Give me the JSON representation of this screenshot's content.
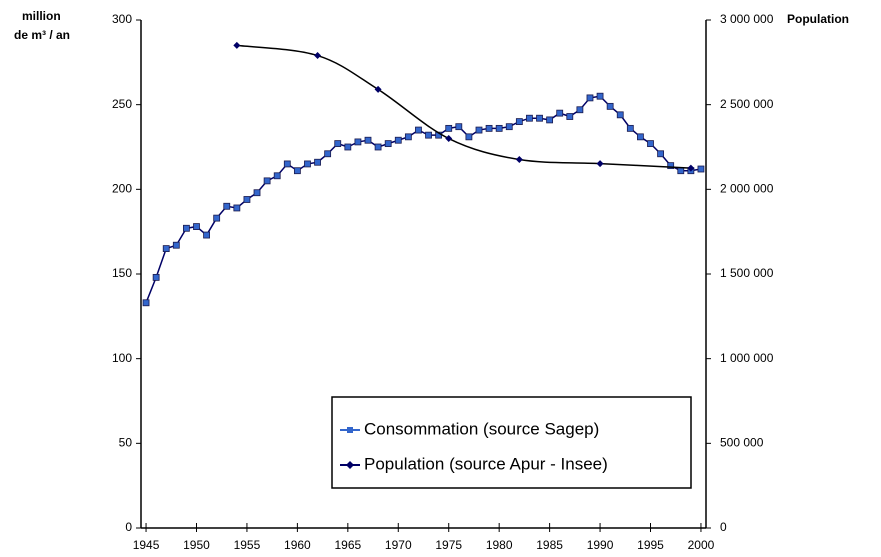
{
  "chart_data": {
    "type": "line",
    "y_label_lines": [
      "million",
      "de m³ / an"
    ],
    "y2_label": "Population",
    "x": [
      1945,
      1946,
      1947,
      1948,
      1949,
      1950,
      1951,
      1952,
      1953,
      1954,
      1955,
      1956,
      1957,
      1958,
      1959,
      1960,
      1961,
      1962,
      1963,
      1964,
      1965,
      1966,
      1967,
      1968,
      1969,
      1970,
      1971,
      1972,
      1973,
      1974,
      1975,
      1976,
      1977,
      1978,
      1979,
      1980,
      1981,
      1982,
      1983,
      1984,
      1985,
      1986,
      1987,
      1988,
      1989,
      1990,
      1991,
      1992,
      1993,
      1994,
      1995,
      1996,
      1997,
      1998,
      1999,
      2000
    ],
    "xlim": [
      1944.5,
      2000.5
    ],
    "xticks": [
      1945,
      1950,
      1955,
      1960,
      1965,
      1970,
      1975,
      1980,
      1985,
      1990,
      1995,
      2000
    ],
    "ylim": [
      0,
      300
    ],
    "yticks": [
      0,
      50,
      100,
      150,
      200,
      250,
      300
    ],
    "y2lim": [
      0,
      3000000
    ],
    "y2ticks": [
      0,
      {
        "value": 500000,
        "label": "500 000"
      },
      {
        "value": 1000000,
        "label": "1 000 000"
      },
      {
        "value": 1500000,
        "label": "1 500 000"
      },
      {
        "value": 2000000,
        "label": "2 000 000"
      },
      {
        "value": 2500000,
        "label": "2 500 000"
      },
      {
        "value": 3000000,
        "label": "3 000 000"
      }
    ],
    "series": [
      {
        "name": "Consommation (source Sagep)",
        "color": "#3366cc",
        "line_color": "#000066",
        "values": [
          133,
          148,
          165,
          167,
          177,
          178,
          173,
          183,
          190,
          189,
          194,
          198,
          205,
          208,
          215,
          211,
          215,
          216,
          221,
          227,
          225,
          228,
          229,
          225,
          227,
          229,
          231,
          235,
          232,
          232,
          236,
          237,
          231,
          235,
          236,
          236,
          237,
          240,
          242,
          242,
          241,
          245,
          243,
          247,
          254,
          255,
          249,
          244,
          236,
          231,
          227,
          221,
          214,
          211,
          211,
          212
        ]
      },
      {
        "name": "Population (source Apur - Insee)",
        "color": "#000066",
        "line_color": "#000000",
        "axis": "y2",
        "x": [
          1954,
          1962,
          1968,
          1975,
          1982,
          1990,
          1999
        ],
        "values": [
          2850000,
          2790000,
          2590000,
          2300000,
          2176000,
          2152000,
          2125000
        ]
      }
    ]
  }
}
